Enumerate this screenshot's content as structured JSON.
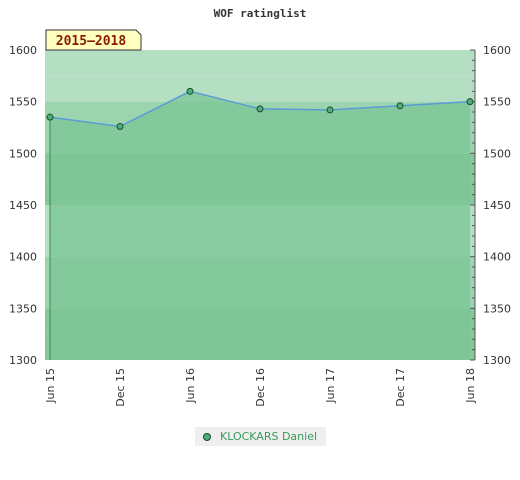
{
  "chart_data": {
    "type": "area",
    "title": "WOF ratinglist",
    "badge": "2015–2018",
    "categories": [
      "Jun 15",
      "Dec 15",
      "Jun 16",
      "Dec 16",
      "Jun 17",
      "Dec 17",
      "Jun 18"
    ],
    "series": [
      {
        "name": "KLOCKARS Daniel",
        "values": [
          1535,
          1526,
          1560,
          1543,
          1542,
          1546,
          1550
        ]
      }
    ],
    "ylim": [
      1300,
      1600
    ],
    "yticks": [
      1300,
      1350,
      1400,
      1450,
      1500,
      1550,
      1600
    ],
    "ylabel_left": "",
    "ylabel_right": "",
    "legend_position": "bottom",
    "grid": true,
    "colors": {
      "line": "#5b9bd5",
      "area": "#7cc596",
      "marker": "#4caf7a",
      "band_light": "#b5dfc3",
      "band_mid": "#9dd4b0",
      "band_dark": "#86c79d"
    }
  }
}
